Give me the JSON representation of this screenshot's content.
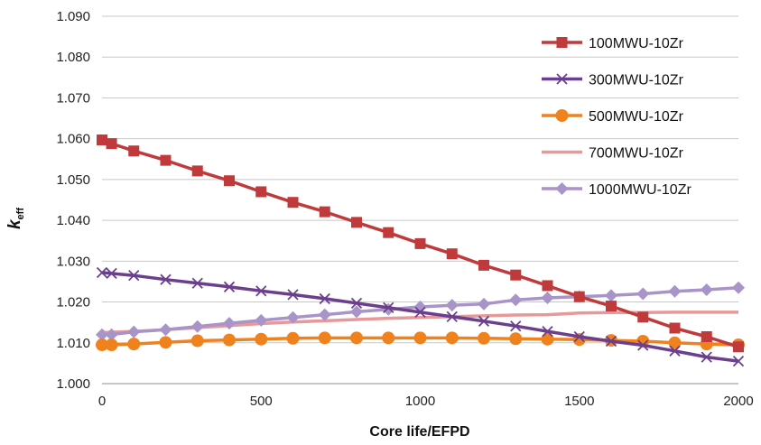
{
  "chart_data": {
    "type": "line",
    "xlabel": "Core life/EFPD",
    "ylabel": {
      "main": "k",
      "sub": "eff"
    },
    "xlim": [
      0,
      2000
    ],
    "ylim": [
      1.0,
      1.09
    ],
    "xticks": [
      "0",
      "500",
      "1000",
      "1500",
      "2000"
    ],
    "yticks": [
      "1.000",
      "1.010",
      "1.020",
      "1.030",
      "1.040",
      "1.050",
      "1.060",
      "1.070",
      "1.080",
      "1.090"
    ],
    "grid": "horizontal",
    "legend_position": "top-right",
    "series": [
      {
        "name": "100MWU-10Zr",
        "color": "#c0393b",
        "marker": "square",
        "x": [
          0,
          30,
          100,
          200,
          300,
          400,
          500,
          600,
          700,
          800,
          900,
          1000,
          1100,
          1200,
          1300,
          1400,
          1500,
          1600,
          1700,
          1800,
          1900,
          2000
        ],
        "y": [
          1.0597,
          1.0588,
          1.057,
          1.0547,
          1.0521,
          1.0497,
          1.047,
          1.0444,
          1.0421,
          1.0395,
          1.037,
          1.0343,
          1.0318,
          1.029,
          1.0266,
          1.024,
          1.0213,
          1.019,
          1.0163,
          1.0136,
          1.0115,
          1.009
        ]
      },
      {
        "name": "300MWU-10Zr",
        "color": "#6b3f8e",
        "marker": "x",
        "x": [
          0,
          30,
          100,
          200,
          300,
          400,
          500,
          600,
          700,
          800,
          900,
          1000,
          1100,
          1200,
          1300,
          1400,
          1500,
          1600,
          1700,
          1800,
          1900,
          2000
        ],
        "y": [
          1.0272,
          1.027,
          1.0265,
          1.0255,
          1.0246,
          1.0237,
          1.0227,
          1.0218,
          1.0208,
          1.0197,
          1.0186,
          1.0175,
          1.0164,
          1.0153,
          1.0141,
          1.0128,
          1.0115,
          1.0104,
          1.0094,
          1.008,
          1.0065,
          1.0055
        ]
      },
      {
        "name": "500MWU-10Zr",
        "color": "#f0821e",
        "marker": "circle",
        "x": [
          0,
          30,
          100,
          200,
          300,
          400,
          500,
          600,
          700,
          800,
          900,
          1000,
          1100,
          1200,
          1300,
          1400,
          1500,
          1600,
          1700,
          1800,
          1900,
          2000
        ],
        "y": [
          1.0095,
          1.0095,
          1.0097,
          1.0101,
          1.0105,
          1.0107,
          1.0109,
          1.0111,
          1.0112,
          1.0112,
          1.0112,
          1.0112,
          1.0112,
          1.0111,
          1.011,
          1.0109,
          1.0108,
          1.0106,
          1.0104,
          1.01,
          1.0097,
          1.0095
        ]
      },
      {
        "name": "700MWU-10Zr",
        "color": "#e89898",
        "marker": "none",
        "x": [
          0,
          30,
          100,
          200,
          300,
          400,
          500,
          600,
          700,
          800,
          900,
          1000,
          1100,
          1200,
          1300,
          1400,
          1500,
          1600,
          1700,
          1800,
          1900,
          2000
        ],
        "y": [
          1.0125,
          1.0126,
          1.0128,
          1.0132,
          1.0137,
          1.0142,
          1.0147,
          1.0151,
          1.0154,
          1.0157,
          1.016,
          1.0162,
          1.0164,
          1.0166,
          1.0168,
          1.0169,
          1.0173,
          1.0174,
          1.0174,
          1.0175,
          1.0175,
          1.0175
        ]
      },
      {
        "name": "1000MWU-10Zr",
        "color": "#a894c8",
        "marker": "diamond",
        "x": [
          0,
          30,
          100,
          200,
          300,
          400,
          500,
          600,
          700,
          800,
          900,
          1000,
          1100,
          1200,
          1300,
          1400,
          1500,
          1600,
          1700,
          1800,
          1900,
          2000
        ],
        "y": [
          1.012,
          1.012,
          1.0127,
          1.0132,
          1.014,
          1.0148,
          1.0155,
          1.0162,
          1.0169,
          1.0176,
          1.0182,
          1.0188,
          1.0192,
          1.0195,
          1.0205,
          1.021,
          1.0213,
          1.0216,
          1.022,
          1.0226,
          1.023,
          1.0235
        ]
      }
    ]
  }
}
